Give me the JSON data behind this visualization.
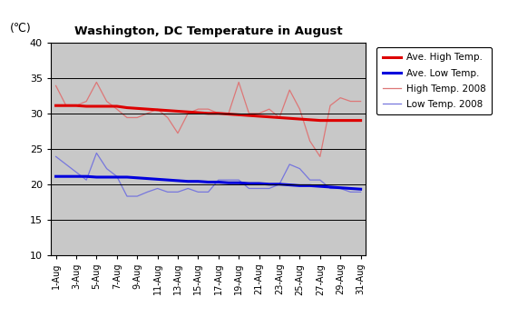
{
  "title": "Washington, DC Temperature in August",
  "ylabel": "(℃)",
  "ylim": [
    10,
    40
  ],
  "yticks": [
    10,
    15,
    20,
    25,
    30,
    35,
    40
  ],
  "x_labels": [
    "1-Aug",
    "3-Aug",
    "5-Aug",
    "7-Aug",
    "9-Aug",
    "11-Aug",
    "13-Aug",
    "15-Aug",
    "17-Aug",
    "19-Aug",
    "21-Aug",
    "23-Aug",
    "25-Aug",
    "27-Aug",
    "29-Aug",
    "31-Aug"
  ],
  "ave_high": [
    31.1,
    31.1,
    31.1,
    31.0,
    31.0,
    31.0,
    31.0,
    30.8,
    30.7,
    30.6,
    30.5,
    30.4,
    30.3,
    30.2,
    30.1,
    30.0,
    30.0,
    29.9,
    29.8,
    29.7,
    29.6,
    29.5,
    29.4,
    29.3,
    29.2,
    29.1,
    29.0,
    29.0,
    29.0,
    29.0,
    29.0
  ],
  "ave_low": [
    21.1,
    21.1,
    21.1,
    21.1,
    21.0,
    21.0,
    21.0,
    21.0,
    20.9,
    20.8,
    20.7,
    20.6,
    20.5,
    20.4,
    20.4,
    20.3,
    20.3,
    20.2,
    20.2,
    20.1,
    20.1,
    20.0,
    20.0,
    19.9,
    19.8,
    19.8,
    19.7,
    19.6,
    19.5,
    19.4,
    19.3
  ],
  "high_2008": [
    33.9,
    31.1,
    31.1,
    31.7,
    34.4,
    31.7,
    30.6,
    29.4,
    29.4,
    30.0,
    30.6,
    29.4,
    27.2,
    30.0,
    30.6,
    30.6,
    30.0,
    30.0,
    34.4,
    30.0,
    30.0,
    30.6,
    29.4,
    33.3,
    30.6,
    26.1,
    23.9,
    31.1,
    32.2,
    31.7,
    31.7
  ],
  "low_2008": [
    23.9,
    22.8,
    21.7,
    20.6,
    24.4,
    22.2,
    21.1,
    18.3,
    18.3,
    18.9,
    19.4,
    18.9,
    18.9,
    19.4,
    18.9,
    18.9,
    20.6,
    20.6,
    20.6,
    19.4,
    19.4,
    19.4,
    20.0,
    22.8,
    22.2,
    20.6,
    20.6,
    19.4,
    19.4,
    18.9,
    18.9
  ],
  "ave_high_color": "#dd0000",
  "ave_low_color": "#0000dd",
  "high_2008_color": "#dd7777",
  "low_2008_color": "#7777dd",
  "bg_color": "#c8c8c8",
  "legend_labels": [
    "Ave. High Temp.",
    "Ave. Low Temp.",
    "High Temp. 2008",
    "Low Temp. 2008"
  ]
}
